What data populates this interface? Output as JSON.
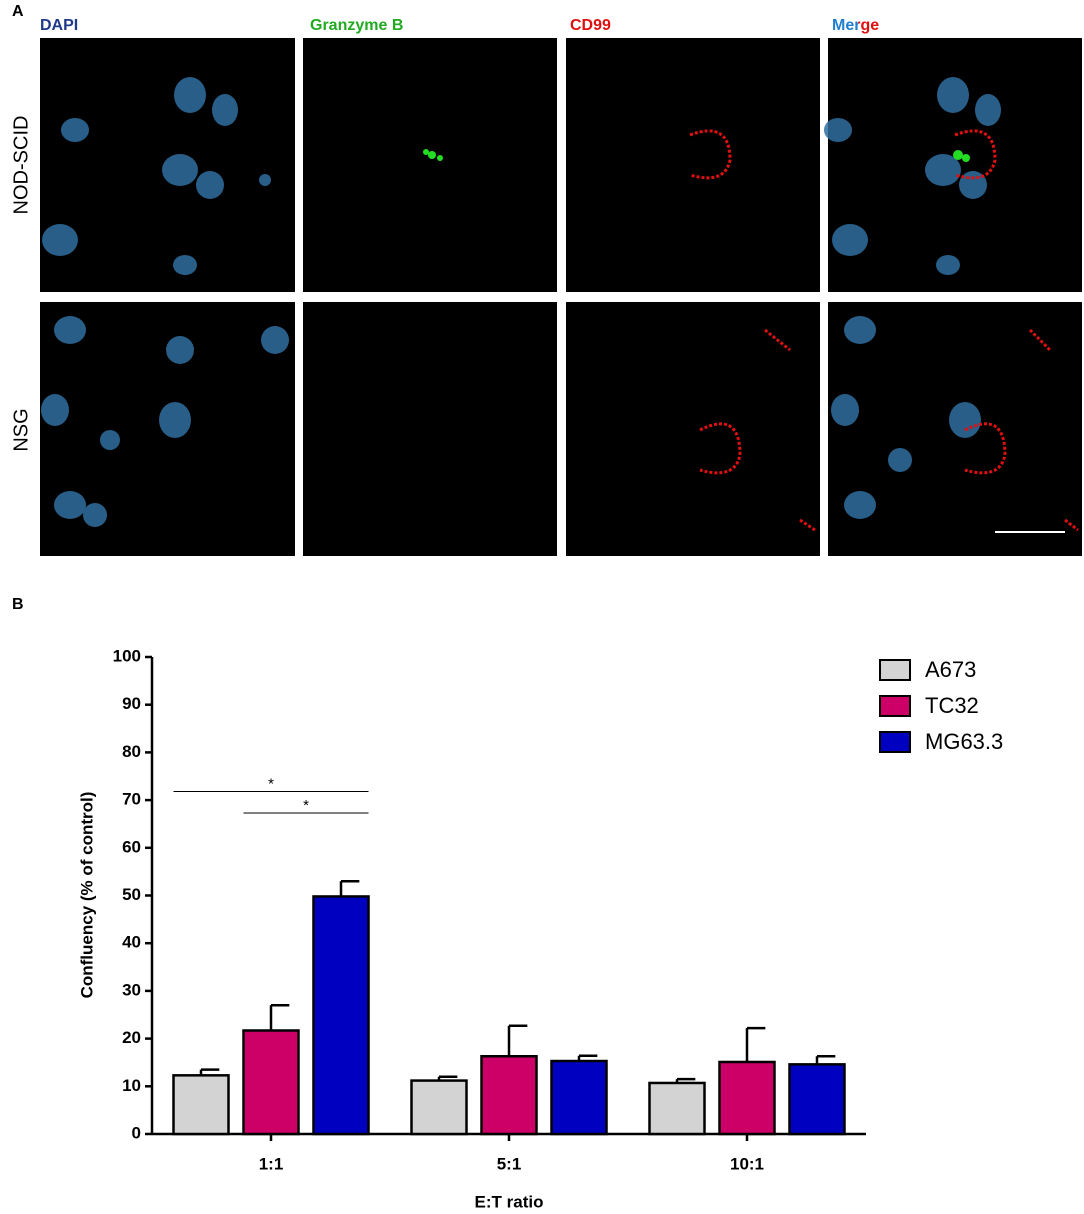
{
  "panel_a": {
    "label": "A",
    "columns": [
      "DAPI",
      "Granzyme B",
      "CD99",
      "Merge"
    ],
    "rows": [
      "NOD-SCID",
      "NSG"
    ]
  },
  "chart_data": {
    "type": "bar",
    "panel_label": "B",
    "categories": [
      "1:1",
      "5:1",
      "10:1"
    ],
    "series": [
      {
        "name": "A673",
        "color": "#d3d3d3",
        "values": [
          12.3,
          11.2,
          10.7
        ],
        "errors": [
          1.2,
          0.8,
          0.8
        ]
      },
      {
        "name": "TC32",
        "color": "#cc0066",
        "values": [
          21.7,
          16.3,
          15.1
        ],
        "errors": [
          5.3,
          6.4,
          7.1
        ]
      },
      {
        "name": "MG63.3",
        "color": "#0000c0",
        "values": [
          49.8,
          15.3,
          14.6
        ],
        "errors": [
          3.2,
          1.1,
          1.7
        ]
      }
    ],
    "ylim": [
      0,
      100
    ],
    "yticks": [
      0,
      10,
      20,
      30,
      40,
      50,
      60,
      70,
      80,
      90,
      100
    ],
    "y_label": "Confluency (% of control)",
    "x_label": "E:T ratio",
    "legend": "top-right",
    "annotations": [
      {
        "text": "*",
        "y": 71.8,
        "category": "1:1",
        "between": [
          "A673",
          "MG63.3"
        ]
      },
      {
        "text": "*",
        "y": 67.3,
        "category": "1:1",
        "between": [
          "TC32",
          "MG63.3"
        ]
      }
    ]
  }
}
